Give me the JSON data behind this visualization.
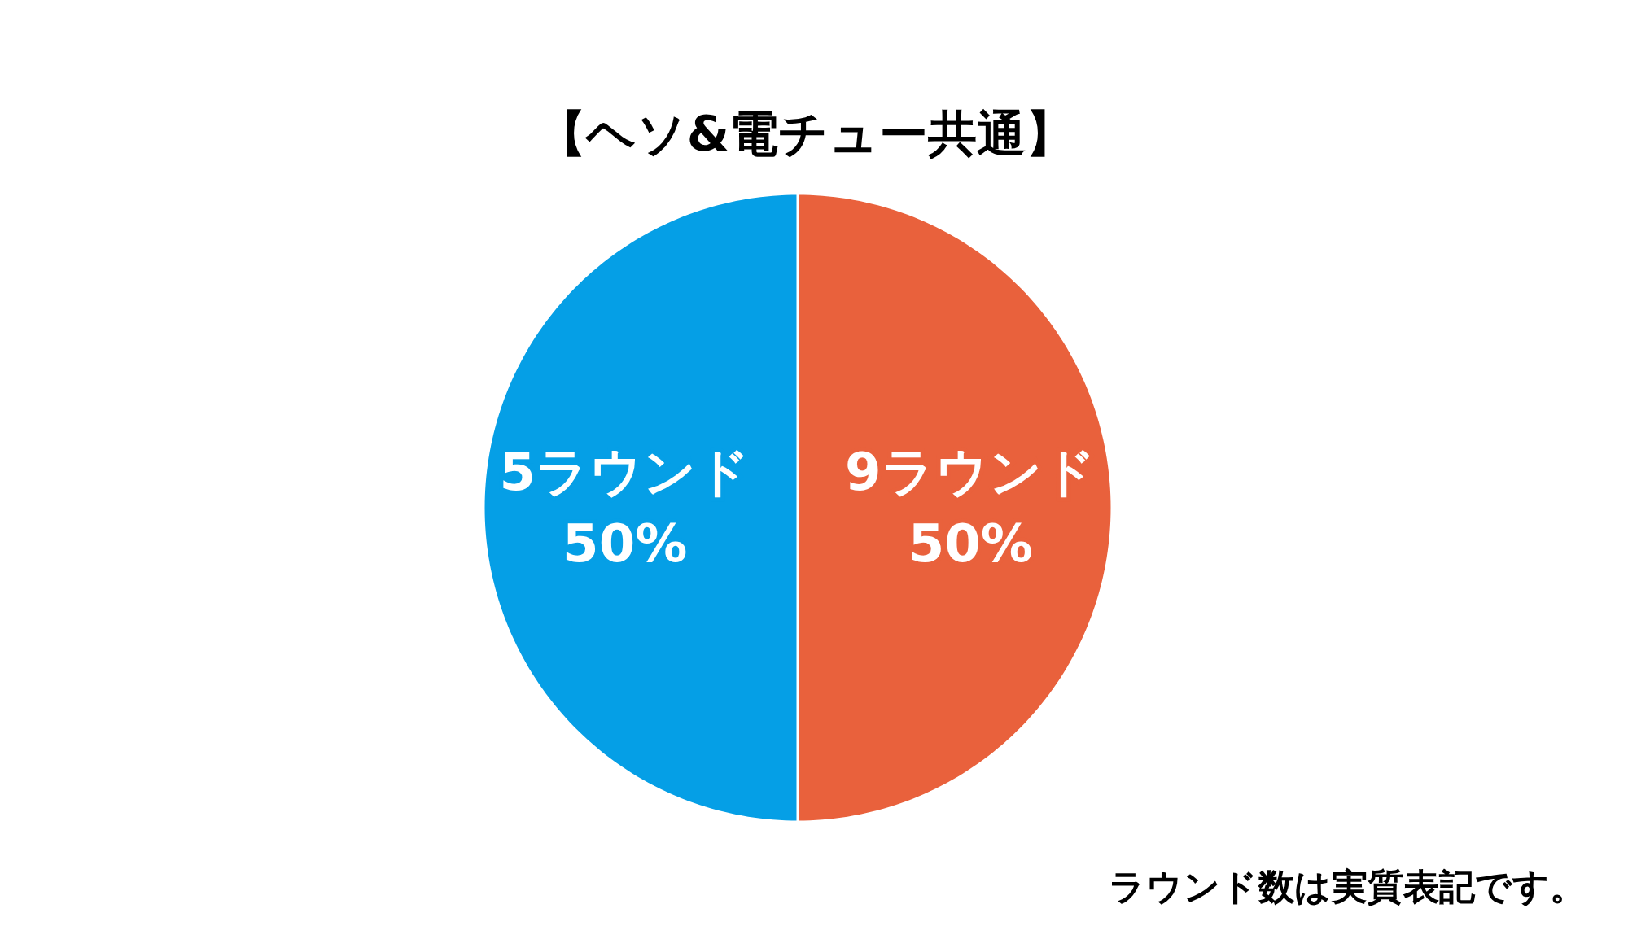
{
  "chart_data": {
    "type": "pie",
    "title": "【ヘソ&電チュー共通】",
    "categories": [
      "9ラウンド",
      "5ラウンド"
    ],
    "values": [
      50,
      50
    ],
    "value_labels": [
      "50%",
      "50%"
    ],
    "colors": [
      "#e9613c",
      "#059fe6"
    ],
    "annotations": [
      "ラウンド数は実質表記です。"
    ]
  }
}
